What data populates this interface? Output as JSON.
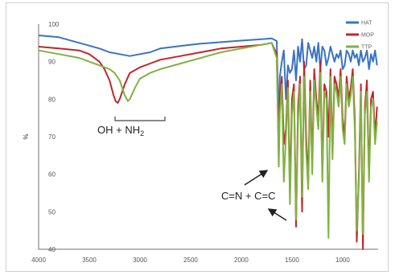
{
  "chart_data": {
    "type": "line",
    "title": "",
    "xlabel": "",
    "ylabel": "%",
    "xlim": [
      4000,
      650
    ],
    "ylim": [
      40,
      100
    ],
    "x_reversed": true,
    "x_ticks": [
      4000,
      3500,
      3000,
      2500,
      2000,
      1500,
      1000
    ],
    "y_ticks": [
      40,
      50,
      60,
      70,
      80,
      90,
      100
    ],
    "grid": false,
    "legend_position": "top-right",
    "series": [
      {
        "name": "HAT",
        "color": "#3a73c4",
        "x": [
          4000,
          3800,
          3600,
          3400,
          3300,
          3200,
          3100,
          3000,
          2900,
          2800,
          2600,
          2400,
          2200,
          2000,
          1800,
          1700,
          1650,
          1630,
          1620,
          1600,
          1580,
          1560,
          1540,
          1520,
          1500,
          1480,
          1460,
          1440,
          1420,
          1400,
          1380,
          1360,
          1340,
          1320,
          1300,
          1280,
          1260,
          1240,
          1220,
          1200,
          1180,
          1160,
          1140,
          1120,
          1100,
          1080,
          1060,
          1040,
          1020,
          1000,
          980,
          960,
          940,
          920,
          900,
          880,
          860,
          840,
          820,
          800,
          780,
          760,
          740,
          720,
          700,
          680,
          660
        ],
        "y": [
          97,
          96.5,
          95,
          93.5,
          92.5,
          92,
          91.5,
          92,
          92.5,
          93.5,
          94.2,
          94.8,
          95.2,
          95.6,
          96,
          96.2,
          95.5,
          72,
          86,
          90,
          93,
          80,
          89,
          87,
          88,
          93,
          85,
          94,
          90,
          96,
          88,
          89,
          95,
          93,
          91,
          94,
          90,
          95,
          88,
          94,
          93,
          89,
          91,
          94,
          92,
          90,
          92,
          91,
          93,
          88,
          89,
          93,
          92,
          90,
          93,
          91,
          92,
          89,
          93,
          90,
          91,
          93,
          88,
          92,
          90,
          93,
          89
        ]
      },
      {
        "name": "MOP",
        "color": "#c0262c",
        "x": [
          4000,
          3800,
          3600,
          3500,
          3400,
          3350,
          3300,
          3260,
          3240,
          3220,
          3200,
          3150,
          3100,
          3000,
          2900,
          2800,
          2600,
          2400,
          2200,
          2000,
          1800,
          1700,
          1650,
          1630,
          1620,
          1600,
          1580,
          1560,
          1540,
          1520,
          1500,
          1480,
          1460,
          1440,
          1420,
          1400,
          1380,
          1360,
          1340,
          1320,
          1300,
          1280,
          1260,
          1240,
          1220,
          1200,
          1180,
          1160,
          1140,
          1120,
          1100,
          1080,
          1060,
          1040,
          1020,
          1000,
          980,
          960,
          940,
          920,
          900,
          880,
          860,
          840,
          820,
          800,
          780,
          760,
          740,
          720,
          700,
          680,
          660
        ],
        "y": [
          94,
          93.5,
          93,
          92,
          90,
          88,
          85,
          81,
          79.5,
          79,
          80,
          84,
          87,
          88.5,
          89.5,
          90.5,
          91.5,
          92.5,
          93.5,
          94,
          94.5,
          95,
          92,
          65,
          80,
          86,
          68,
          72,
          85,
          55,
          80,
          84,
          46,
          78,
          86,
          50,
          90,
          70,
          58,
          85,
          62,
          88,
          80,
          75,
          90,
          60,
          84,
          82,
          70,
          88,
          66,
          86,
          84,
          80,
          88,
          75,
          70,
          86,
          80,
          83,
          88,
          75,
          42,
          60,
          84,
          40,
          78,
          85,
          60,
          80,
          82,
          70,
          78
        ]
      },
      {
        "name": "TTP",
        "color": "#7fb241",
        "x": [
          4000,
          3800,
          3600,
          3500,
          3400,
          3300,
          3250,
          3200,
          3150,
          3120,
          3100,
          3050,
          3000,
          2900,
          2800,
          2600,
          2400,
          2200,
          2000,
          1800,
          1700,
          1650,
          1630,
          1620,
          1600,
          1580,
          1560,
          1540,
          1520,
          1500,
          1480,
          1460,
          1440,
          1420,
          1400,
          1380,
          1360,
          1340,
          1320,
          1300,
          1280,
          1260,
          1240,
          1220,
          1200,
          1180,
          1160,
          1140,
          1120,
          1100,
          1080,
          1060,
          1040,
          1020,
          1000,
          980,
          960,
          940,
          920,
          900,
          880,
          860,
          840,
          820,
          800,
          780,
          760,
          740,
          720,
          700,
          680,
          660
        ],
        "y": [
          93,
          92,
          91,
          90,
          89,
          88,
          87,
          85,
          81,
          79.5,
          80,
          83,
          85.5,
          87,
          88,
          89.5,
          91,
          92.5,
          93.5,
          94.5,
          95,
          91,
          62,
          76,
          84,
          58,
          70,
          83,
          52,
          76,
          82,
          48,
          74,
          84,
          54,
          86,
          66,
          56,
          82,
          60,
          85,
          78,
          72,
          87,
          58,
          82,
          80,
          43,
          86,
          64,
          84,
          82,
          78,
          86,
          72,
          68,
          84,
          78,
          81,
          86,
          72,
          45,
          58,
          82,
          44,
          76,
          82,
          58,
          78,
          80,
          68,
          74
        ]
      }
    ],
    "annotations": [
      {
        "text_main": "OH + NH",
        "text_sub": "2",
        "near_x": 3150,
        "near_y": 79
      },
      {
        "text_main": "C=N + C=C",
        "near_x": 1600,
        "near_y": 60
      }
    ]
  }
}
